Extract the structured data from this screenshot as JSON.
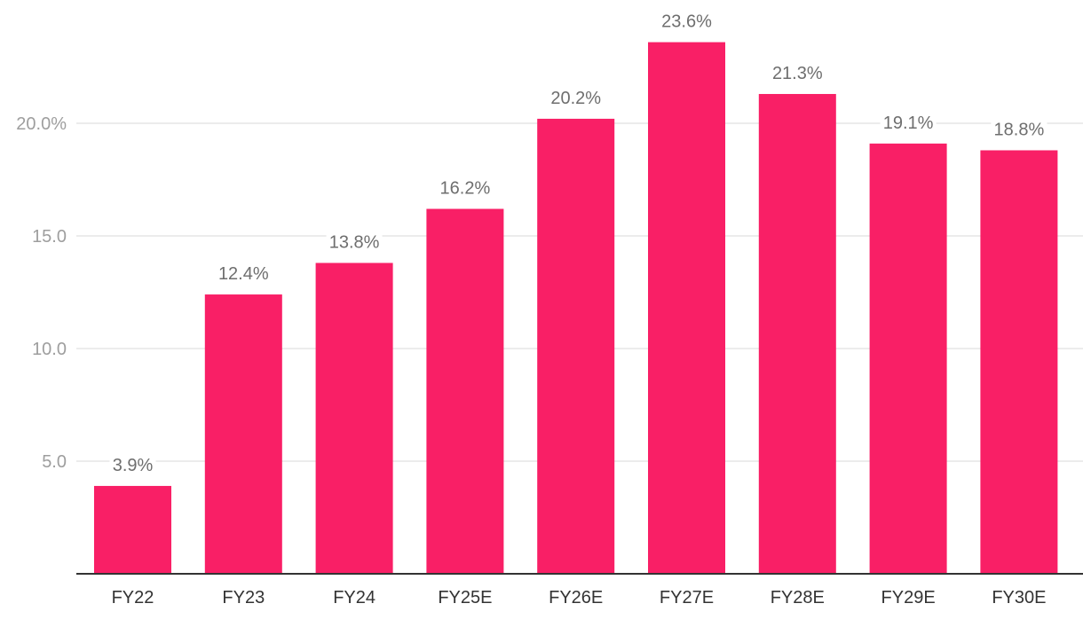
{
  "chart_data": {
    "type": "bar",
    "title": "",
    "xlabel": "",
    "ylabel": "",
    "categories": [
      "FY22",
      "FY23",
      "FY24",
      "FY25E",
      "FY26E",
      "FY27E",
      "FY28E",
      "FY29E",
      "FY30E"
    ],
    "values": [
      3.9,
      12.4,
      13.8,
      16.2,
      20.2,
      23.6,
      21.3,
      19.1,
      18.8
    ],
    "data_labels": [
      "3.9%",
      "12.4%",
      "13.8%",
      "16.2%",
      "20.2%",
      "23.6%",
      "21.3%",
      "19.1%",
      "18.8%"
    ],
    "yticks": [
      5,
      10,
      15,
      20
    ],
    "ytick_labels": [
      "5.0",
      "10.0",
      "15.0",
      "20.0%"
    ],
    "ylim": [
      0,
      25
    ],
    "grid": true,
    "legend": "none",
    "colors": {
      "bar": "#f91f66",
      "grid": "#e6e6e6",
      "axis": "#333333",
      "tick_label": "#9e9e9e",
      "data_label": "#6e6e6e",
      "category_label": "#333333"
    }
  }
}
